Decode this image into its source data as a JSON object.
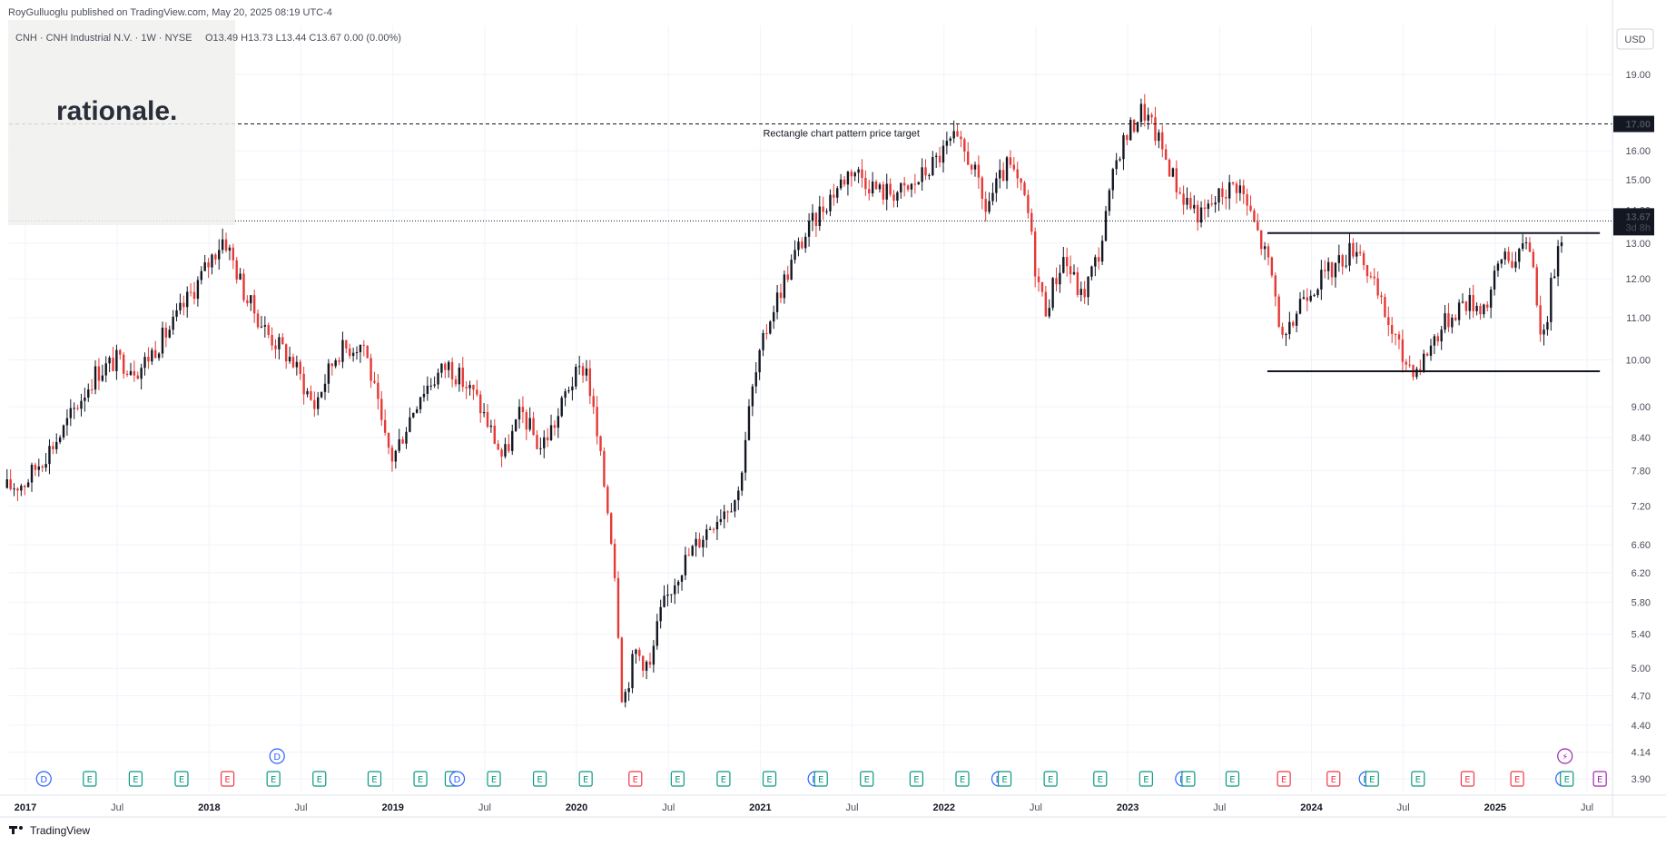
{
  "header": {
    "published": "RoyGulluoglu published on TradingView.com, May 20, 2025 08:19 UTC-4",
    "symbol_line": "CNH · CNH Industrial N.V. · 1W · NYSE",
    "ohlc": "O13.49  H13.73  L13.44  C13.67  0.00 (0.00%)"
  },
  "watermark_logo": "rationale.",
  "footer_brand": "TradingView",
  "currency": "USD",
  "colors": {
    "up": "#131722",
    "down": "#e53935",
    "bg": "#ffffff",
    "grid": "#f0f3fa",
    "earnings": "#089981",
    "earnings_miss": "#f23645",
    "dividend": "#2962ff",
    "split": "#9c27b0"
  },
  "chart_data": {
    "type": "candlestick",
    "interval": "1W",
    "scale": "log",
    "ylim": [
      3.9,
      20.2
    ],
    "y_ticks": [
      "19.00",
      "16.00",
      "15.00",
      "14.00",
      "13.00",
      "12.00",
      "11.00",
      "10.00",
      "9.00",
      "8.40",
      "7.80",
      "7.20",
      "6.60",
      "6.20",
      "5.80",
      "5.40",
      "5.00",
      "4.70",
      "4.40",
      "4.14",
      "3.90"
    ],
    "x_ticks": [
      {
        "label": "2017",
        "bold": true
      },
      {
        "label": "Jul",
        "bold": false
      },
      {
        "label": "2018",
        "bold": true
      },
      {
        "label": "Jul",
        "bold": false
      },
      {
        "label": "2019",
        "bold": true
      },
      {
        "label": "Jul",
        "bold": false
      },
      {
        "label": "2020",
        "bold": true
      },
      {
        "label": "Jul",
        "bold": false
      },
      {
        "label": "2021",
        "bold": true
      },
      {
        "label": "Jul",
        "bold": false
      },
      {
        "label": "2022",
        "bold": true
      },
      {
        "label": "Jul",
        "bold": false
      },
      {
        "label": "2023",
        "bold": true
      },
      {
        "label": "Jul",
        "bold": false
      },
      {
        "label": "2024",
        "bold": true
      },
      {
        "label": "Jul",
        "bold": false
      },
      {
        "label": "2025",
        "bold": true
      },
      {
        "label": "Jul",
        "bold": false
      }
    ],
    "price_path": [
      {
        "t": 2016.9,
        "p": 7.5
      },
      {
        "t": 2017.0,
        "p": 7.6
      },
      {
        "t": 2017.2,
        "p": 8.5
      },
      {
        "t": 2017.38,
        "p": 9.7
      },
      {
        "t": 2017.5,
        "p": 10.0
      },
      {
        "t": 2017.62,
        "p": 9.8
      },
      {
        "t": 2017.8,
        "p": 10.8
      },
      {
        "t": 2017.95,
        "p": 12.0
      },
      {
        "t": 2018.08,
        "p": 13.2
      },
      {
        "t": 2018.2,
        "p": 11.5
      },
      {
        "t": 2018.32,
        "p": 10.6
      },
      {
        "t": 2018.45,
        "p": 10.0
      },
      {
        "t": 2018.57,
        "p": 9.0
      },
      {
        "t": 2018.7,
        "p": 10.2
      },
      {
        "t": 2018.84,
        "p": 10.4
      },
      {
        "t": 2018.95,
        "p": 8.4
      },
      {
        "t": 2019.0,
        "p": 8.0
      },
      {
        "t": 2019.15,
        "p": 9.3
      },
      {
        "t": 2019.3,
        "p": 9.9
      },
      {
        "t": 2019.45,
        "p": 9.2
      },
      {
        "t": 2019.6,
        "p": 8.0
      },
      {
        "t": 2019.7,
        "p": 8.9
      },
      {
        "t": 2019.8,
        "p": 8.2
      },
      {
        "t": 2019.9,
        "p": 8.8
      },
      {
        "t": 2019.95,
        "p": 9.4
      },
      {
        "t": 2020.05,
        "p": 9.9
      },
      {
        "t": 2020.12,
        "p": 8.2
      },
      {
        "t": 2020.2,
        "p": 6.5
      },
      {
        "t": 2020.25,
        "p": 4.6
      },
      {
        "t": 2020.32,
        "p": 5.2
      },
      {
        "t": 2020.4,
        "p": 5.0
      },
      {
        "t": 2020.45,
        "p": 5.6
      },
      {
        "t": 2020.55,
        "p": 6.2
      },
      {
        "t": 2020.75,
        "p": 7.0
      },
      {
        "t": 2020.88,
        "p": 7.4
      },
      {
        "t": 2020.95,
        "p": 9.2
      },
      {
        "t": 2021.05,
        "p": 11.0
      },
      {
        "t": 2021.2,
        "p": 12.8
      },
      {
        "t": 2021.35,
        "p": 14.2
      },
      {
        "t": 2021.5,
        "p": 15.4
      },
      {
        "t": 2021.65,
        "p": 14.6
      },
      {
        "t": 2021.8,
        "p": 14.6
      },
      {
        "t": 2021.95,
        "p": 15.6
      },
      {
        "t": 2022.05,
        "p": 16.4
      },
      {
        "t": 2022.15,
        "p": 15.6
      },
      {
        "t": 2022.22,
        "p": 14.0
      },
      {
        "t": 2022.35,
        "p": 15.5
      },
      {
        "t": 2022.45,
        "p": 14.2
      },
      {
        "t": 2022.5,
        "p": 12.2
      },
      {
        "t": 2022.55,
        "p": 11.2
      },
      {
        "t": 2022.65,
        "p": 12.6
      },
      {
        "t": 2022.75,
        "p": 11.5
      },
      {
        "t": 2022.85,
        "p": 12.8
      },
      {
        "t": 2022.95,
        "p": 16.0
      },
      {
        "t": 2023.08,
        "p": 17.6
      },
      {
        "t": 2023.16,
        "p": 16.5
      },
      {
        "t": 2023.28,
        "p": 14.6
      },
      {
        "t": 2023.4,
        "p": 13.8
      },
      {
        "t": 2023.52,
        "p": 14.6
      },
      {
        "t": 2023.6,
        "p": 14.9
      },
      {
        "t": 2023.7,
        "p": 13.4
      },
      {
        "t": 2023.78,
        "p": 12.2
      },
      {
        "t": 2023.85,
        "p": 10.2
      },
      {
        "t": 2023.95,
        "p": 11.6
      },
      {
        "t": 2024.1,
        "p": 12.2
      },
      {
        "t": 2024.25,
        "p": 13.0
      },
      {
        "t": 2024.32,
        "p": 12.0
      },
      {
        "t": 2024.38,
        "p": 11.3
      },
      {
        "t": 2024.5,
        "p": 10.0
      },
      {
        "t": 2024.58,
        "p": 9.8
      },
      {
        "t": 2024.68,
        "p": 10.6
      },
      {
        "t": 2024.82,
        "p": 11.4
      },
      {
        "t": 2024.95,
        "p": 11.3
      },
      {
        "t": 2025.05,
        "p": 12.8
      },
      {
        "t": 2025.12,
        "p": 12.4
      },
      {
        "t": 2025.18,
        "p": 13.3
      },
      {
        "t": 2025.26,
        "p": 10.3
      },
      {
        "t": 2025.33,
        "p": 12.6
      },
      {
        "t": 2025.38,
        "p": 13.67
      }
    ],
    "last_price": {
      "value": "13.67",
      "countdown": "3d 8h"
    },
    "price_target": {
      "value": "17.00",
      "annotation": "Rectangle chart pattern price target"
    },
    "rectangle": {
      "top": 13.3,
      "bottom": 9.75,
      "start": 2023.76,
      "end": 2025.57
    },
    "events": [
      {
        "t": 2017.1,
        "k": "D"
      },
      {
        "t": 2017.35,
        "k": "E"
      },
      {
        "t": 2017.6,
        "k": "E"
      },
      {
        "t": 2017.85,
        "k": "E"
      },
      {
        "t": 2018.1,
        "k": "E",
        "miss": true
      },
      {
        "t": 2018.35,
        "k": "E"
      },
      {
        "t": 2018.37,
        "k": "D",
        "raised": true
      },
      {
        "t": 2018.6,
        "k": "E"
      },
      {
        "t": 2018.9,
        "k": "E"
      },
      {
        "t": 2019.15,
        "k": "E"
      },
      {
        "t": 2019.32,
        "k": "E"
      },
      {
        "t": 2019.35,
        "k": "D"
      },
      {
        "t": 2019.55,
        "k": "E"
      },
      {
        "t": 2019.8,
        "k": "E"
      },
      {
        "t": 2020.05,
        "k": "E"
      },
      {
        "t": 2020.32,
        "k": "E",
        "miss": true
      },
      {
        "t": 2020.55,
        "k": "E"
      },
      {
        "t": 2020.8,
        "k": "E"
      },
      {
        "t": 2021.05,
        "k": "E"
      },
      {
        "t": 2021.3,
        "k": "D"
      },
      {
        "t": 2021.33,
        "k": "E"
      },
      {
        "t": 2021.58,
        "k": "E"
      },
      {
        "t": 2021.85,
        "k": "E"
      },
      {
        "t": 2022.1,
        "k": "E"
      },
      {
        "t": 2022.3,
        "k": "D"
      },
      {
        "t": 2022.33,
        "k": "E"
      },
      {
        "t": 2022.58,
        "k": "E"
      },
      {
        "t": 2022.85,
        "k": "E"
      },
      {
        "t": 2023.1,
        "k": "E"
      },
      {
        "t": 2023.3,
        "k": "D"
      },
      {
        "t": 2023.33,
        "k": "E"
      },
      {
        "t": 2023.57,
        "k": "E"
      },
      {
        "t": 2023.85,
        "k": "E",
        "miss": true
      },
      {
        "t": 2024.12,
        "k": "E",
        "miss": true
      },
      {
        "t": 2024.3,
        "k": "D"
      },
      {
        "t": 2024.33,
        "k": "E"
      },
      {
        "t": 2024.58,
        "k": "E"
      },
      {
        "t": 2024.85,
        "k": "E",
        "miss": true
      },
      {
        "t": 2025.12,
        "k": "E",
        "miss": true
      },
      {
        "t": 2025.37,
        "k": "D"
      },
      {
        "t": 2025.39,
        "k": "E"
      },
      {
        "t": 2025.38,
        "k": "S",
        "raised": true
      },
      {
        "t": 2025.57,
        "k": "E",
        "future": true
      }
    ]
  }
}
